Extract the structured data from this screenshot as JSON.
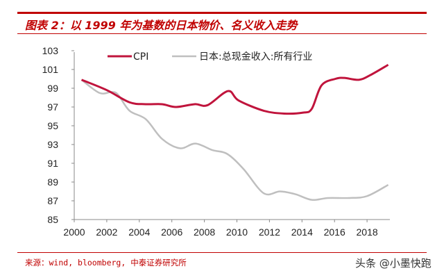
{
  "header": {
    "title": "图表 2：以 1999 年为基数的日本物价、名义收入走势"
  },
  "footer": {
    "source": "来源：wind, bloomberg, 中泰证券研究所",
    "watermark": "头条 @小墨快跑"
  },
  "chart_data": {
    "type": "line",
    "title": "",
    "xlabel": "",
    "ylabel": "",
    "xlim": [
      2000,
      2019.5
    ],
    "ylim": [
      85,
      103
    ],
    "x_ticks": [
      "2000",
      "2002",
      "2004",
      "2006",
      "2008",
      "2010",
      "2012",
      "2014",
      "2016",
      "2018"
    ],
    "y_ticks": [
      "85",
      "87",
      "89",
      "91",
      "93",
      "95",
      "97",
      "99",
      "101",
      "103"
    ],
    "grid": false,
    "legend": "top",
    "series": [
      {
        "name": "CPI",
        "color": "#c0143c",
        "points": [
          [
            2000.45,
            99.9
          ],
          [
            2002.0,
            98.8
          ],
          [
            2003.4,
            97.5
          ],
          [
            2004.4,
            97.3
          ],
          [
            2005.4,
            97.3
          ],
          [
            2006.25,
            97.0
          ],
          [
            2007.4,
            97.3
          ],
          [
            2008.2,
            97.2
          ],
          [
            2009.45,
            98.7
          ],
          [
            2010.1,
            97.7
          ],
          [
            2011.65,
            96.6
          ],
          [
            2012.9,
            96.3
          ],
          [
            2014.06,
            96.4
          ],
          [
            2014.6,
            96.8
          ],
          [
            2015.2,
            99.3
          ],
          [
            2016.05,
            100.0
          ],
          [
            2016.6,
            100.1
          ],
          [
            2017.5,
            99.9
          ],
          [
            2018.2,
            100.4
          ],
          [
            2019.3,
            101.5
          ]
        ]
      },
      {
        "name": "日本:总现金收入:所有行业",
        "color": "#bfbfbf",
        "points": [
          [
            2000.45,
            99.9
          ],
          [
            2001.55,
            98.5
          ],
          [
            2002.3,
            98.6
          ],
          [
            2002.7,
            98.3
          ],
          [
            2003.4,
            96.6
          ],
          [
            2004.4,
            95.7
          ],
          [
            2005.4,
            93.6
          ],
          [
            2006.5,
            92.6
          ],
          [
            2007.45,
            93.1
          ],
          [
            2008.5,
            92.4
          ],
          [
            2009.4,
            92.0
          ],
          [
            2010.4,
            90.4
          ],
          [
            2011.65,
            87.8
          ],
          [
            2012.65,
            88.0
          ],
          [
            2013.6,
            87.7
          ],
          [
            2014.6,
            87.1
          ],
          [
            2015.6,
            87.3
          ],
          [
            2016.9,
            87.3
          ],
          [
            2018.0,
            87.5
          ],
          [
            2019.3,
            88.7
          ]
        ]
      }
    ]
  }
}
